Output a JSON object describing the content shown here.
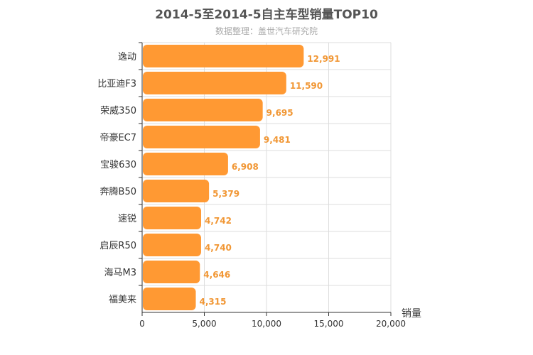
{
  "chart_data": {
    "type": "bar",
    "orientation": "horizontal",
    "title": "2014-5至2014-5自主车型销量TOP10",
    "subtitle": "数据整理：盖世汽车研究院",
    "xlabel": "销量",
    "categories": [
      "逸动",
      "比亚迪F3",
      "荣威350",
      "帝豪EC7",
      "宝骏630",
      "奔腾B50",
      "速锐",
      "启辰R50",
      "海马M3",
      "福美来"
    ],
    "values": [
      12991,
      11590,
      9695,
      9481,
      6908,
      5379,
      4742,
      4740,
      4646,
      4315
    ],
    "value_labels": [
      "12,991",
      "11,590",
      "9,695",
      "9,481",
      "6,908",
      "5,379",
      "4,742",
      "4,740",
      "4,646",
      "4,315"
    ],
    "xlim": [
      0,
      20000
    ],
    "xticks": [
      0,
      5000,
      10000,
      15000,
      20000
    ],
    "xtick_labels": [
      "0",
      "5,000",
      "10,000",
      "15,000",
      "20,000"
    ],
    "grid": true,
    "bar_color": "#ff9933",
    "label_color": "#f19735"
  }
}
